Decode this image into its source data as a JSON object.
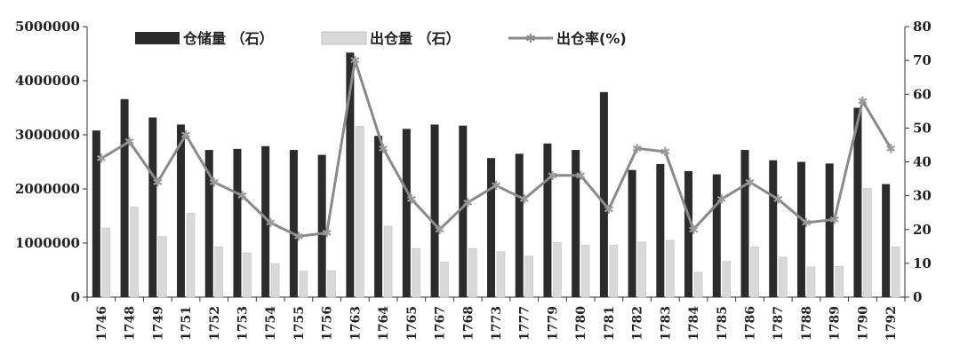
{
  "chart_data": {
    "type": "bar",
    "categories": [
      "1746",
      "1748",
      "1749",
      "1751",
      "1752",
      "1753",
      "1754",
      "1755",
      "1756",
      "1763",
      "1764",
      "1765",
      "1767",
      "1768",
      "1773",
      "1777",
      "1779",
      "1780",
      "1781",
      "1782",
      "1783",
      "1784",
      "1785",
      "1786",
      "1787",
      "1788",
      "1789",
      "1790",
      "1792"
    ],
    "series": [
      {
        "name": "仓储量 （石）",
        "type": "bar",
        "axis": "left",
        "color": "#2b2b2b",
        "values": [
          3080000,
          3660000,
          3320000,
          3190000,
          2720000,
          2740000,
          2790000,
          2720000,
          2630000,
          4520000,
          2980000,
          3110000,
          3190000,
          3170000,
          2570000,
          2650000,
          2840000,
          2720000,
          3790000,
          2350000,
          2460000,
          2330000,
          2270000,
          2720000,
          2530000,
          2500000,
          2470000,
          3500000,
          2090000
        ]
      },
      {
        "name": "出仓量 （石）",
        "type": "bar",
        "axis": "left",
        "color": "#d9d9d9",
        "values": [
          1280000,
          1670000,
          1120000,
          1550000,
          930000,
          820000,
          620000,
          480000,
          490000,
          3160000,
          1310000,
          900000,
          650000,
          900000,
          840000,
          760000,
          1010000,
          960000,
          960000,
          1020000,
          1050000,
          460000,
          660000,
          930000,
          740000,
          560000,
          570000,
          2010000,
          930000
        ]
      },
      {
        "name": "出仓率(%)",
        "type": "line",
        "axis": "right",
        "color": "#8a8a8a",
        "values": [
          41,
          46,
          34,
          48,
          34,
          30,
          22,
          18,
          19,
          70,
          44,
          29,
          20,
          28,
          33,
          29,
          36,
          36,
          26,
          44,
          43,
          20,
          29,
          34,
          29,
          22,
          23,
          58,
          44
        ]
      }
    ],
    "y_left": {
      "ylim": [
        0,
        5000000
      ],
      "ticks": [
        0,
        1000000,
        2000000,
        3000000,
        4000000,
        5000000
      ],
      "tick_labels": [
        "0",
        "1000000",
        "2000000",
        "3000000",
        "4000000",
        "5000000"
      ]
    },
    "y_right": {
      "ylim": [
        0,
        80
      ],
      "ticks": [
        0,
        10,
        20,
        30,
        40,
        50,
        60,
        70,
        80
      ],
      "tick_labels": [
        "0",
        "10",
        "20",
        "30",
        "40",
        "50",
        "60",
        "70",
        "80"
      ]
    },
    "legend": {
      "placement": "top",
      "items": [
        "仓储量 （石）",
        "出仓量 （石）",
        "出仓率(%)"
      ]
    },
    "grid": false,
    "title": "",
    "xlabel": "",
    "ylabel": ""
  }
}
